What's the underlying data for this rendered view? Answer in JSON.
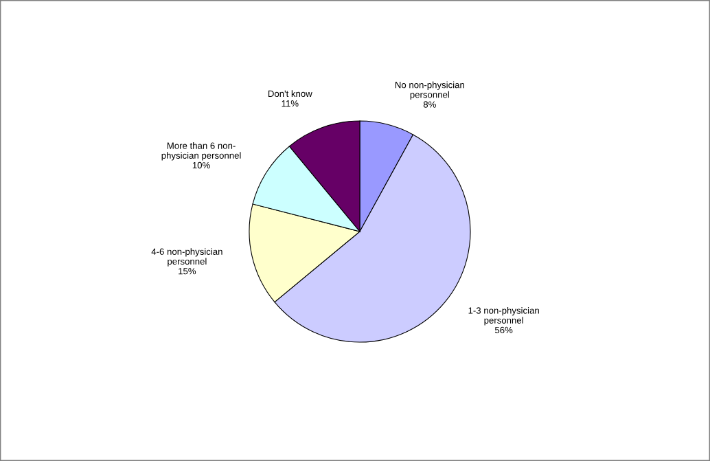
{
  "chart_data": {
    "type": "pie",
    "categories": [
      "No non-physician\npersonnel",
      "1-3 non-physician\npersonnel",
      "4-6 non-physician\npersonnel",
      "More than 6 non-\nphysician personnel",
      "Don't know"
    ],
    "values": [
      8,
      56,
      15,
      10,
      11
    ],
    "colors": [
      "#9999ff",
      "#ccccff",
      "#ffffcc",
      "#ccffff",
      "#660066"
    ],
    "value_labels": [
      "8%",
      "56%",
      "15%",
      "10%",
      "11%"
    ],
    "legend": false
  }
}
